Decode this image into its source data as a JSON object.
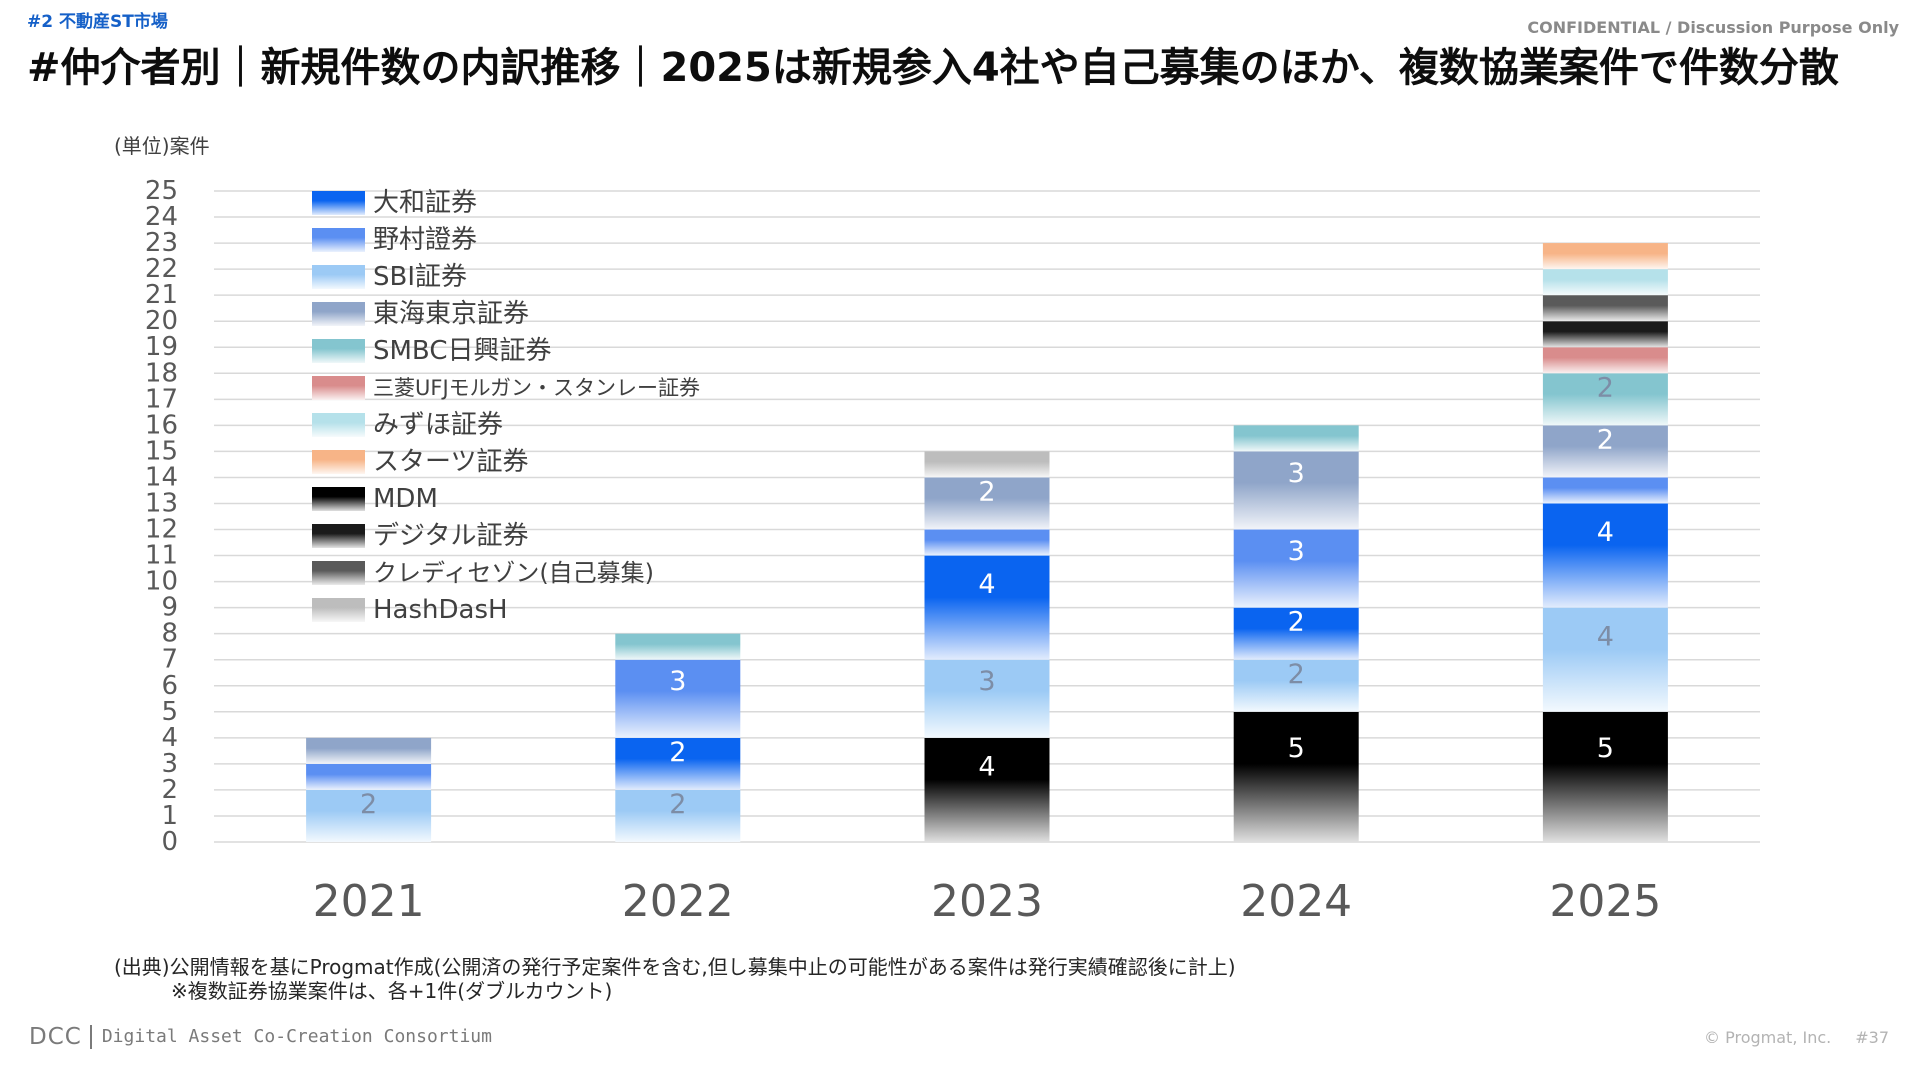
{
  "header": {
    "section": "#2 不動産ST市場",
    "confidential": "CONFIDENTIAL / Discussion Purpose Only",
    "title": "#仲介者別｜新規件数の内訳推移｜2025は新規参入4社や自己募集のほか、複数協業案件で件数分散"
  },
  "chart_data": {
    "type": "bar",
    "stacked": true,
    "ylabel": "(単位)案件",
    "ylim": [
      0,
      25
    ],
    "yticks": [
      0,
      1,
      2,
      3,
      4,
      5,
      6,
      7,
      8,
      9,
      10,
      11,
      12,
      13,
      14,
      15,
      16,
      17,
      18,
      19,
      20,
      21,
      22,
      23,
      24,
      25
    ],
    "grid": true,
    "legend": "top-left",
    "categories": [
      "2021",
      "2022",
      "2023",
      "2024",
      "2025"
    ],
    "series": [
      {
        "name": "大和証券",
        "color": "#0a64f0",
        "values": [
          0,
          2,
          4,
          2,
          4
        ]
      },
      {
        "name": "野村證券",
        "color": "#5b8ff2",
        "values": [
          1,
          3,
          1,
          3,
          1
        ]
      },
      {
        "name": "SBI証券",
        "color": "#9ccaf5",
        "values": [
          2,
          2,
          3,
          2,
          4
        ]
      },
      {
        "name": "東海東京証券",
        "color": "#8fa5c9",
        "values": [
          1,
          0,
          2,
          3,
          2
        ]
      },
      {
        "name": "SMBC日興証券",
        "color": "#84c5cf",
        "values": [
          0,
          1,
          0,
          1,
          2
        ]
      },
      {
        "name": "三菱UFJモルガン・スタンレー証券",
        "color": "#d98c8c",
        "values": [
          0,
          0,
          0,
          0,
          1
        ]
      },
      {
        "name": "みずほ証券",
        "color": "#b5e1ea",
        "values": [
          0,
          0,
          0,
          0,
          1
        ]
      },
      {
        "name": "スターツ証券",
        "color": "#f7b487",
        "values": [
          0,
          0,
          0,
          0,
          1
        ]
      },
      {
        "name": "MDM",
        "color": "#000000",
        "values": [
          0,
          0,
          4,
          5,
          5
        ]
      },
      {
        "name": "デジタル証券",
        "color": "#1a1a1a",
        "values": [
          0,
          0,
          0,
          0,
          1
        ]
      },
      {
        "name": "クレディセゾン(自己募集)",
        "color": "#5a5a5a",
        "values": [
          0,
          0,
          0,
          0,
          1
        ]
      },
      {
        "name": "HashDasH",
        "color": "#bdbdbd",
        "values": [
          0,
          0,
          1,
          0,
          0
        ]
      }
    ],
    "stack_order": [
      "MDM",
      "SBI証券",
      "大和証券",
      "野村證券",
      "東海東京証券",
      "SMBC日興証券",
      "三菱UFJモルガン・スタンレー証券",
      "デジタル証券",
      "クレディセゾン(自己募集)",
      "みずほ証券",
      "スターツ証券",
      "HashDasH"
    ]
  },
  "footer": {
    "source": "(出典)公開情報を基にProgmat作成(公開済の発行予定案件を含む,但し募集中止の可能性がある案件は発行実績確認後に計上)",
    "note": "※複数証券協業案件は、各+1件(ダブルカウント)",
    "brand": "DCC",
    "brand_name": "Digital Asset Co-Creation Consortium",
    "copyright": "© Progmat, Inc.",
    "page": "#37"
  }
}
